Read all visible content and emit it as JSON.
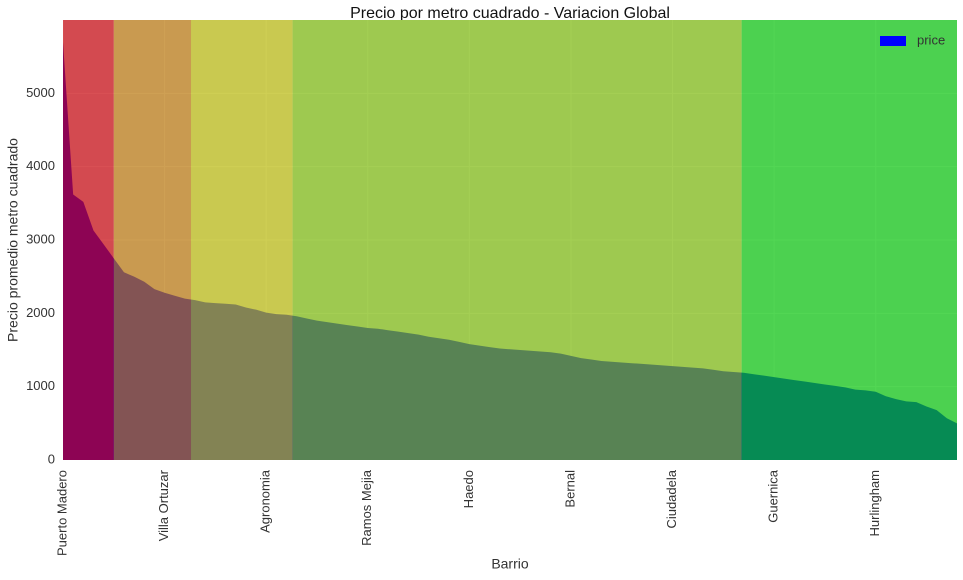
{
  "chart_data": {
    "type": "area",
    "title": "Precio por metro cuadrado - Variacion Global",
    "x_label": "Barrio",
    "y_label": "Precio promedio metro cuadrado",
    "categories": [
      "Puerto Madero",
      null,
      null,
      null,
      null,
      null,
      null,
      null,
      null,
      null,
      "Villa Ortuzar",
      null,
      null,
      null,
      null,
      null,
      null,
      null,
      null,
      null,
      "Agronomia",
      null,
      null,
      null,
      null,
      null,
      null,
      null,
      null,
      null,
      "Ramos Mejia",
      null,
      null,
      null,
      null,
      null,
      null,
      null,
      null,
      null,
      "Haedo",
      null,
      null,
      null,
      null,
      null,
      null,
      null,
      null,
      null,
      "Bernal",
      null,
      null,
      null,
      null,
      null,
      null,
      null,
      null,
      null,
      "Ciudadela",
      null,
      null,
      null,
      null,
      null,
      null,
      null,
      null,
      null,
      "Guernica",
      null,
      null,
      null,
      null,
      null,
      null,
      null,
      null,
      null,
      "Hurlingham",
      null,
      null,
      null,
      null,
      null,
      null,
      null,
      null
    ],
    "series": [
      {
        "name": "price",
        "color": "#0000ff",
        "values": [
          5700,
          3620,
          3520,
          3130,
          2940,
          2750,
          2560,
          2500,
          2430,
          2330,
          2280,
          2240,
          2200,
          2180,
          2150,
          2140,
          2130,
          2120,
          2080,
          2050,
          2010,
          1990,
          1980,
          1960,
          1930,
          1900,
          1880,
          1860,
          1840,
          1820,
          1800,
          1790,
          1770,
          1750,
          1730,
          1710,
          1680,
          1660,
          1640,
          1610,
          1580,
          1560,
          1540,
          1520,
          1510,
          1500,
          1490,
          1480,
          1470,
          1450,
          1420,
          1390,
          1370,
          1350,
          1340,
          1330,
          1320,
          1310,
          1300,
          1290,
          1280,
          1270,
          1260,
          1250,
          1230,
          1210,
          1200,
          1190,
          1170,
          1150,
          1130,
          1110,
          1090,
          1070,
          1050,
          1030,
          1010,
          990,
          960,
          950,
          930,
          870,
          830,
          800,
          790,
          730,
          680,
          570,
          500
        ]
      }
    ],
    "bands": [
      {
        "x": [
          0,
          5
        ],
        "color": "#c9050c"
      },
      {
        "x": [
          5,
          12.6
        ],
        "color": "#ba770c"
      },
      {
        "x": [
          12.6,
          22.6
        ],
        "color": "#baba0c"
      },
      {
        "x": [
          22.6,
          66.8
        ],
        "color": "#7dba0c"
      },
      {
        "x": [
          66.8,
          88
        ],
        "color": "#08c60c"
      }
    ],
    "band_opacity": 0.7,
    "ylim": [
      0,
      6000
    ],
    "yticks": [
      0,
      1000,
      2000,
      3000,
      4000,
      5000
    ],
    "grid": true,
    "legend": "upper right"
  }
}
